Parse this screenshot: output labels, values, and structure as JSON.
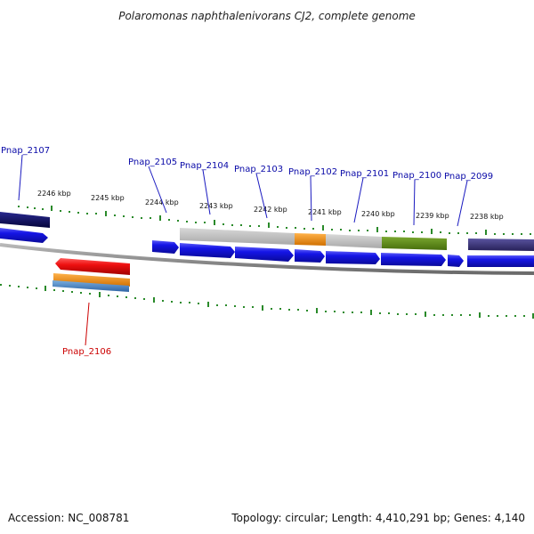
{
  "title": "Polaromonas naphthalenivorans CJ2, complete genome",
  "footer": {
    "accession": "Accession: NC_008781",
    "stats": "Topology: circular; Length: 4,410,291 bp; Genes: 4,140"
  },
  "kbp_labels": [
    "2246 kbp",
    "2245 kbp",
    "2244 kbp",
    "2243 kbp",
    "2242 kbp",
    "2241 kbp",
    "2240 kbp",
    "2239 kbp",
    "2238 kbp"
  ],
  "gene_labels": [
    {
      "name": "Pnap_2107",
      "color": "#0a0aa8"
    },
    {
      "name": "Pnap_2105",
      "color": "#0a0aa8"
    },
    {
      "name": "Pnap_2104",
      "color": "#0a0aa8"
    },
    {
      "name": "Pnap_2103",
      "color": "#0a0aa8"
    },
    {
      "name": "Pnap_2102",
      "color": "#0a0aa8"
    },
    {
      "name": "Pnap_2101",
      "color": "#0a0aa8"
    },
    {
      "name": "Pnap_2100",
      "color": "#0a0aa8"
    },
    {
      "name": "Pnap_2099",
      "color": "#0a0aa8"
    },
    {
      "name": "Pnap_2106",
      "color": "#cc0000"
    }
  ],
  "colors": {
    "gene_blue": "#1010e0",
    "gene_navy": "#06065e",
    "gene_red": "#ee1010",
    "cog_grey": "#bdbdbd",
    "cog_orange": "#f0920e",
    "cog_green": "#5b8a14",
    "cog_purple": "#3a3478",
    "cog_steelblue": "#4a80c0",
    "tick_green": "#2a8a2a",
    "backbone": "#8a8a8a"
  }
}
